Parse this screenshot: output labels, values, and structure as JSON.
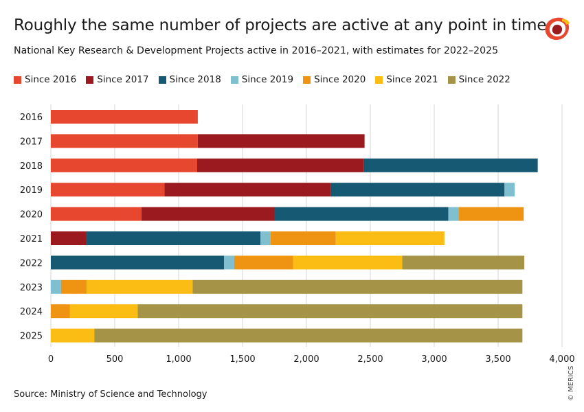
{
  "title": "Roughly the same number of projects are active at any point in time",
  "subtitle": "National Key Research & Development Projects active in 2016–2021, with estimates for 2022–2025",
  "source": "Source: Ministry of Science and Technology",
  "credit": "© MERICS",
  "logo_icon": "merics-logo-icon",
  "colors": {
    "Since 2016": "#e8472f",
    "Since 2017": "#9b1a1f",
    "Since 2018": "#155a72",
    "Since 2019": "#7fbfcf",
    "Since 2020": "#ef9313",
    "Since 2021": "#fbbd14",
    "Since 2022": "#a59347",
    "grid": "#d4d4d4"
  },
  "chart_data": {
    "type": "bar",
    "orientation": "horizontal",
    "stacked": true,
    "title": "Roughly the same number of projects are active at any point in time",
    "categories": [
      "2016",
      "2017",
      "2018",
      "2019",
      "2020",
      "2021",
      "2022",
      "2023",
      "2024",
      "2025"
    ],
    "series": [
      {
        "name": "Since 2016",
        "values": [
          1150,
          1150,
          1145,
          890,
          710,
          0,
          0,
          0,
          0,
          0
        ]
      },
      {
        "name": "Since 2017",
        "values": [
          0,
          1305,
          1305,
          1300,
          1040,
          280,
          0,
          0,
          0,
          0
        ]
      },
      {
        "name": "Since 2018",
        "values": [
          0,
          0,
          1360,
          1360,
          1360,
          1360,
          1355,
          0,
          0,
          0
        ]
      },
      {
        "name": "Since 2019",
        "values": [
          0,
          0,
          0,
          80,
          80,
          80,
          80,
          80,
          0,
          0
        ]
      },
      {
        "name": "Since 2020",
        "values": [
          0,
          0,
          0,
          0,
          510,
          510,
          460,
          200,
          150,
          0
        ]
      },
      {
        "name": "Since 2021",
        "values": [
          0,
          0,
          0,
          0,
          0,
          850,
          855,
          830,
          530,
          340
        ]
      },
      {
        "name": "Since 2022",
        "values": [
          0,
          0,
          0,
          0,
          0,
          0,
          955,
          2580,
          3010,
          3350
        ]
      }
    ],
    "xlim": [
      0,
      4000
    ],
    "xticks": [
      0,
      500,
      1000,
      1500,
      2000,
      2500,
      3000,
      3500,
      4000
    ],
    "xtick_labels": [
      "0",
      "500",
      "1,000",
      "1,500",
      "2,000",
      "2,500",
      "3,000",
      "3,500",
      "4,000"
    ],
    "xlabel": "",
    "ylabel": "",
    "grid": "vertical",
    "legend_position": "top"
  }
}
